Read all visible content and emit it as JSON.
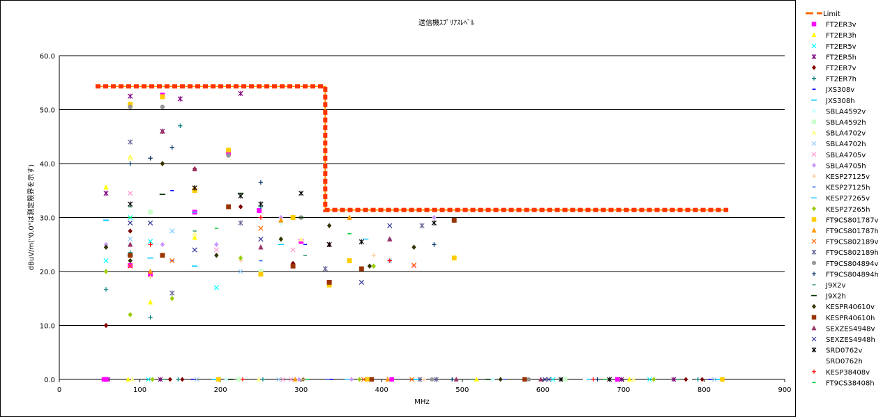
{
  "chart_data": {
    "type": "scatter",
    "title": "送信機ｽﾌﾟﾘｱｽﾚﾍﾞﾙ",
    "xlabel": "MHz",
    "ylabel": "dBuV/m(\"0.0\"は測定限界を示す)",
    "xlim": [
      0,
      900
    ],
    "ylim": [
      0,
      60
    ],
    "xticks": [
      "0",
      "100",
      "200",
      "300",
      "400",
      "500",
      "600",
      "700",
      "800",
      "900"
    ],
    "yticks": [
      "0.0",
      "10.0",
      "20.0",
      "30.0",
      "40.0",
      "50.0",
      "60.0"
    ],
    "grid": "horizontal",
    "legend_position": "right",
    "limit": {
      "name": "Limit",
      "color": "#ff3300",
      "x": [
        45,
        330,
        330,
        830
      ],
      "y": [
        54.3,
        54.3,
        31.4,
        31.4
      ]
    },
    "series": [
      {
        "name": "FT2ER3v",
        "color": "#ff00ff",
        "marker": "square",
        "x": [
          58,
          88,
          113,
          128,
          168,
          210,
          248,
          300,
          335
        ],
        "y": [
          0,
          21.1,
          19.5,
          52.7,
          31,
          42,
          31.3,
          25.6,
          18
        ]
      },
      {
        "name": "FT2ER3h",
        "color": "#ffff00",
        "marker": "triangle",
        "x": [
          58,
          88,
          113,
          128,
          168,
          210
        ],
        "y": [
          35.6,
          41.2,
          14.3,
          23,
          26.3,
          42.5
        ]
      },
      {
        "name": "FT2ER5v",
        "color": "#00ffff",
        "marker": "x",
        "x": [
          58,
          88,
          113,
          140,
          195
        ],
        "y": [
          22,
          30,
          25.6,
          27.5,
          17
        ]
      },
      {
        "name": "FT2ER5h",
        "color": "#800080",
        "marker": "star",
        "x": [
          58,
          88,
          128,
          150,
          225
        ],
        "y": [
          34.5,
          52.5,
          46,
          52,
          53
        ]
      },
      {
        "name": "FT2ER7v",
        "color": "#800000",
        "marker": "diamond",
        "x": [
          58,
          88,
          128,
          168,
          225,
          290
        ],
        "y": [
          10,
          27.5,
          40,
          39,
          32,
          21.5
        ]
      },
      {
        "name": "FT2ER7h",
        "color": "#008080",
        "marker": "plus",
        "x": [
          58,
          88,
          113,
          150,
          250
        ],
        "y": [
          16.7,
          23.5,
          11.5,
          47,
          32
        ]
      },
      {
        "name": "JXS308v",
        "color": "#0000ff",
        "marker": "dash",
        "x": [
          58,
          140,
          305
        ],
        "y": [
          29.5,
          35,
          25
        ]
      },
      {
        "name": "JXS308h",
        "color": "#00ccff",
        "marker": "hline",
        "x": [
          58,
          113,
          168,
          275
        ],
        "y": [
          29.5,
          22.5,
          21,
          25
        ]
      },
      {
        "name": "SBLA4592v",
        "color": "#ccffff",
        "marker": "diamond",
        "x": [
          88,
          195,
          275
        ],
        "y": [
          25,
          23,
          29
        ]
      },
      {
        "name": "SBLA4592h",
        "color": "#ccffcc",
        "marker": "square",
        "x": [
          113,
          250,
          360
        ],
        "y": [
          31,
          20,
          22
        ]
      },
      {
        "name": "SBLA4702v",
        "color": "#ffff99",
        "marker": "triangle",
        "x": [
          88,
          168,
          300
        ],
        "y": [
          41,
          27,
          26
        ]
      },
      {
        "name": "SBLA4702h",
        "color": "#99ccff",
        "marker": "x",
        "x": [
          88,
          140,
          225,
          410
        ],
        "y": [
          26,
          27.5,
          20,
          22
        ]
      },
      {
        "name": "SBLA4705v",
        "color": "#ff99cc",
        "marker": "x",
        "x": [
          88,
          195,
          290,
          440
        ],
        "y": [
          34.5,
          24,
          24,
          21
        ]
      },
      {
        "name": "SBLA4705h",
        "color": "#cc99ff",
        "marker": "diamond",
        "x": [
          58,
          128,
          195,
          275,
          465
        ],
        "y": [
          25,
          25,
          25,
          30,
          30
        ]
      },
      {
        "name": "KESP27125v",
        "color": "#ffcc99",
        "marker": "plus",
        "x": [
          113,
          225,
          390
        ],
        "y": [
          19,
          22,
          23
        ]
      },
      {
        "name": "KESP27125h",
        "color": "#3366ff",
        "marker": "dash",
        "x": [
          140,
          250,
          410
        ],
        "y": [
          22,
          22,
          26
        ]
      },
      {
        "name": "KESP27265v",
        "color": "#33ccff",
        "marker": "hline",
        "x": [
          88,
          168,
          300,
          380
        ],
        "y": [
          23,
          31,
          30,
          26
        ]
      },
      {
        "name": "KESP27265h",
        "color": "#99cc00",
        "marker": "diamond",
        "x": [
          58,
          88,
          140,
          225,
          390
        ],
        "y": [
          20,
          12,
          15,
          22.5,
          21
        ]
      },
      {
        "name": "FT9CS801787v",
        "color": "#ffcc00",
        "marker": "square",
        "x": [
          88,
          128,
          168,
          210,
          250,
          290,
          335,
          360,
          490
        ],
        "y": [
          51,
          52.4,
          35,
          42.5,
          19.5,
          30,
          17.5,
          22,
          22.5
        ]
      },
      {
        "name": "FT9CS801787h",
        "color": "#ff9900",
        "marker": "triangle",
        "x": [
          113,
          168,
          275,
          360
        ],
        "y": [
          20,
          35.5,
          29.5,
          30
        ]
      },
      {
        "name": "FT9CS802189v",
        "color": "#ff6600",
        "marker": "x",
        "x": [
          88,
          140,
          250,
          440
        ],
        "y": [
          21,
          22,
          28,
          21.2
        ]
      },
      {
        "name": "FT9CS802189h",
        "color": "#666699",
        "marker": "star",
        "x": [
          88,
          140,
          225,
          330,
          450
        ],
        "y": [
          44,
          16,
          29,
          20.5,
          28.5
        ]
      },
      {
        "name": "FT9CS804894v",
        "color": "#969696",
        "marker": "circle",
        "x": [
          88,
          128,
          210,
          300
        ],
        "y": [
          50.5,
          50.5,
          41.5,
          30
        ]
      },
      {
        "name": "FT9CS804894h",
        "color": "#003366",
        "marker": "plus",
        "x": [
          88,
          113,
          140,
          250,
          465
        ],
        "y": [
          40,
          41,
          43,
          36.5,
          25
        ]
      },
      {
        "name": "J9X2v",
        "color": "#339966",
        "marker": "dash",
        "x": [
          88,
          168,
          305
        ],
        "y": [
          32,
          27.5,
          23
        ]
      },
      {
        "name": "J9X2h",
        "color": "#003300",
        "marker": "hline",
        "x": [
          128,
          225,
          300
        ],
        "y": [
          34.3,
          34.5,
          30
        ]
      },
      {
        "name": "KESPR40610v",
        "color": "#333300",
        "marker": "diamond",
        "x": [
          58,
          88,
          128,
          195,
          275,
          335,
          385,
          440
        ],
        "y": [
          24.5,
          22,
          40,
          23,
          26,
          28.5,
          21,
          24.5
        ]
      },
      {
        "name": "KESPR40610h",
        "color": "#993300",
        "marker": "square",
        "x": [
          88,
          128,
          210,
          290,
          335,
          375,
          490
        ],
        "y": [
          23,
          23,
          32,
          21,
          18,
          20.5,
          29.5
        ]
      },
      {
        "name": "SEXZES4948v",
        "color": "#993366",
        "marker": "triangle",
        "x": [
          88,
          128,
          168,
          250,
          335,
          410
        ],
        "y": [
          25,
          46,
          39,
          24.5,
          25,
          26
        ]
      },
      {
        "name": "SEXZES4948h",
        "color": "#333399",
        "marker": "x",
        "x": [
          88,
          113,
          168,
          250,
          375,
          410
        ],
        "y": [
          29,
          29,
          24,
          26,
          18,
          28.5
        ]
      },
      {
        "name": "SRD0762v",
        "color": "#000000",
        "marker": "star",
        "x": [
          88,
          168,
          225,
          250,
          300,
          335,
          375,
          465
        ],
        "y": [
          32.5,
          35.5,
          34,
          32.5,
          34.5,
          25,
          25.5,
          29
        ]
      },
      {
        "name": "SRD0762h",
        "color": "#ffffff",
        "marker": "none",
        "x": [],
        "y": []
      },
      {
        "name": "KESP38408v",
        "color": "#ff0000",
        "marker": "plus",
        "x": [
          113,
          250,
          410
        ],
        "y": [
          25,
          30,
          22
        ]
      },
      {
        "name": "FT9CS38408h",
        "color": "#00cc33",
        "marker": "dash",
        "x": [
          88,
          195,
          360
        ],
        "y": [
          30,
          28,
          27
        ]
      }
    ],
    "noise_floor": {
      "x": [
        58,
        88,
        113,
        128,
        140,
        150,
        168,
        195,
        210,
        225,
        250,
        275,
        290,
        300,
        305,
        335,
        360,
        375,
        385,
        410,
        440,
        450,
        465,
        490,
        515,
        535,
        550,
        580,
        600,
        610,
        625,
        655,
        665,
        680,
        695,
        710,
        735,
        765,
        780,
        795,
        810,
        820
      ],
      "y": 0
    }
  }
}
